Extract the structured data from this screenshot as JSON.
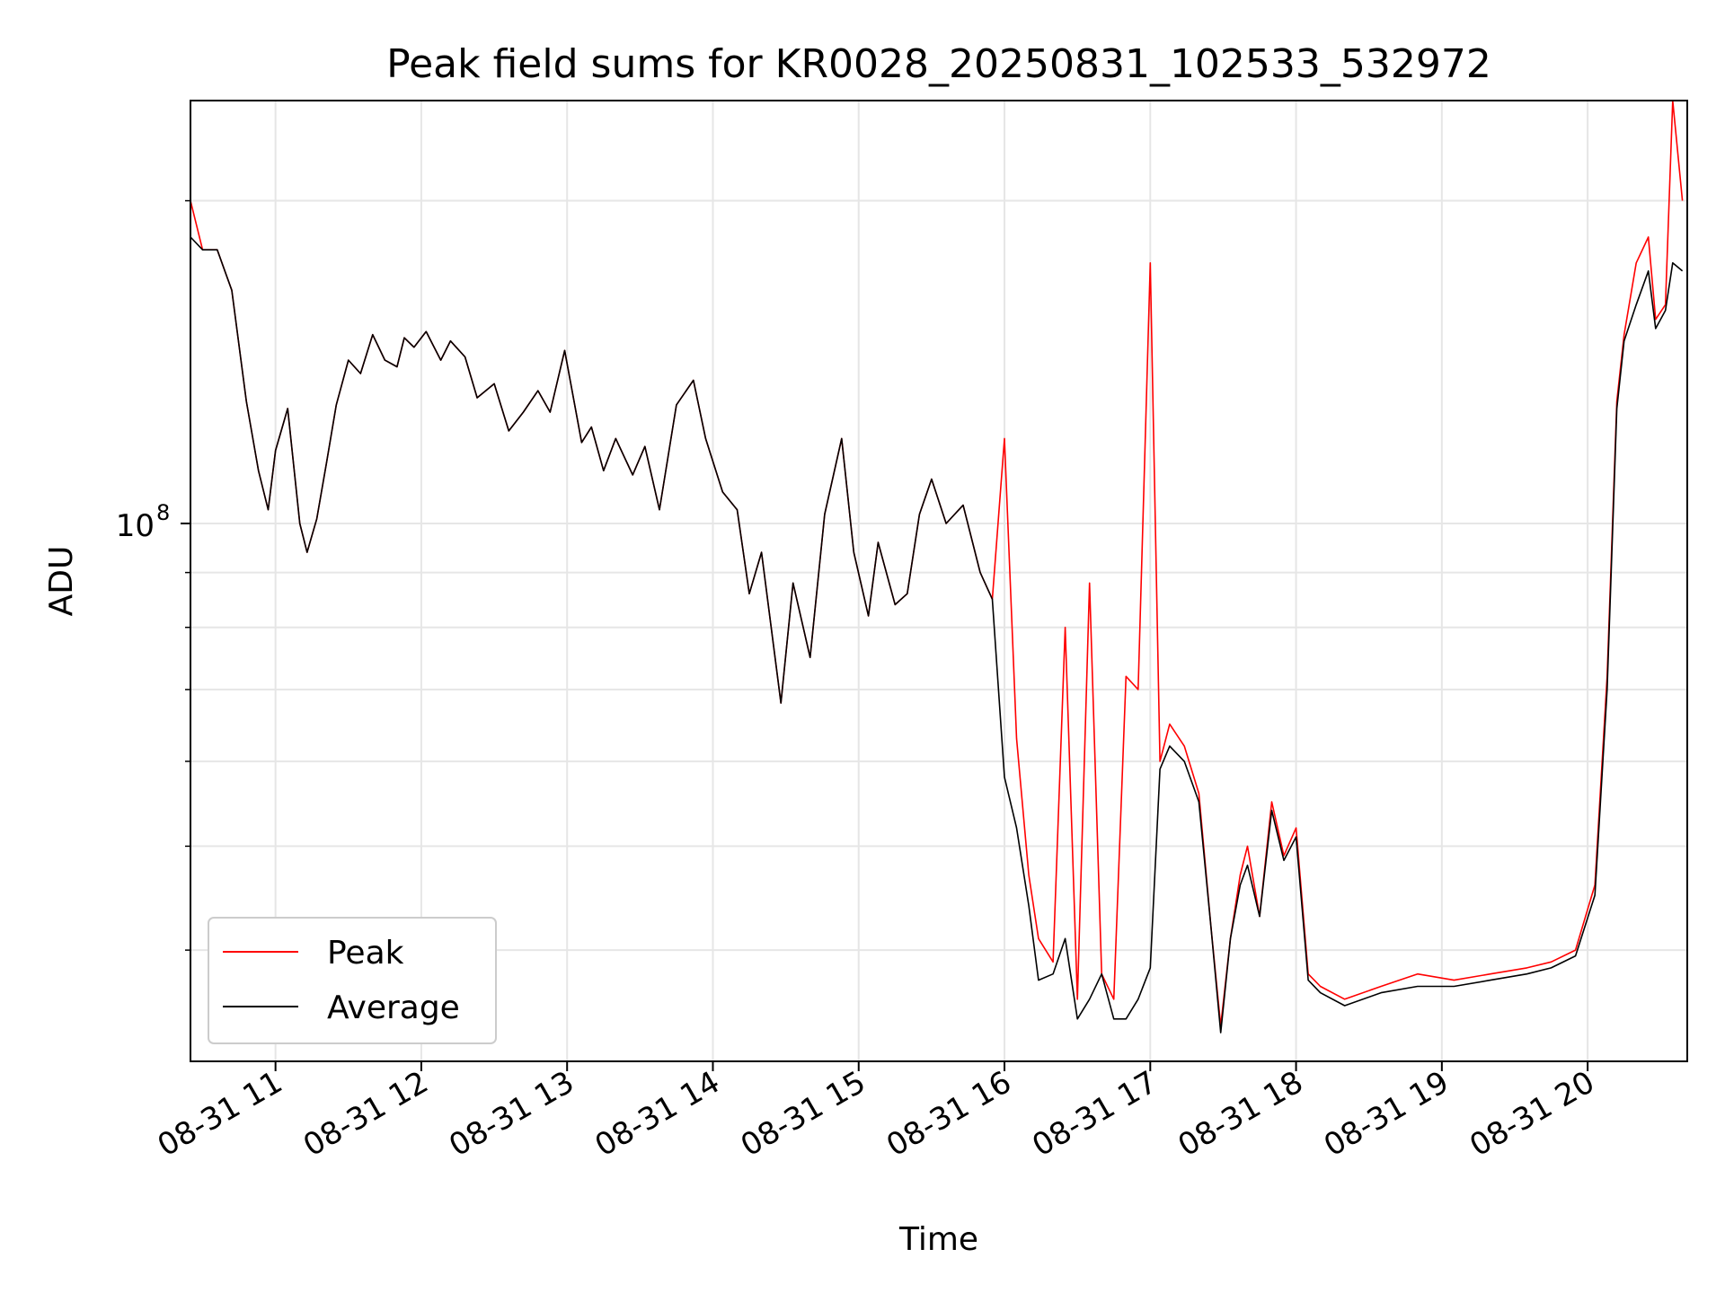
{
  "chart_data": {
    "type": "line",
    "title": "Peak field sums for KR0028_20250831_102533_532972",
    "xlabel": "Time",
    "ylabel": "ADU",
    "x_scale": "time",
    "y_scale": "log",
    "xlim": [
      "2025-08-31T10:25",
      "2025-08-31T20:41"
    ],
    "ylim": [
      31500000,
      248000000
    ],
    "xticks": [
      "08-31 11",
      "08-31 12",
      "08-31 13",
      "08-31 14",
      "08-31 15",
      "08-31 16",
      "08-31 17",
      "08-31 18",
      "08-31 19",
      "08-31 20"
    ],
    "yticks": [
      {
        "label": "10",
        "exp": "8",
        "value": 100000000
      }
    ],
    "grid": true,
    "legend_position": "lower-left",
    "colors": {
      "peak": "#ff0000",
      "average": "#000000",
      "grid": "#e6e6e6"
    },
    "x": [
      "10:25",
      "10:30",
      "10:36",
      "10:42",
      "10:48",
      "10:53",
      "10:57",
      "11:00",
      "11:05",
      "11:10",
      "11:13",
      "11:17",
      "11:21",
      "11:25",
      "11:30",
      "11:35",
      "11:40",
      "11:45",
      "11:50",
      "11:53",
      "11:57",
      "12:02",
      "12:08",
      "12:12",
      "12:18",
      "12:23",
      "12:30",
      "12:36",
      "12:42",
      "12:48",
      "12:53",
      "12:59",
      "13:06",
      "13:10",
      "13:15",
      "13:20",
      "13:27",
      "13:32",
      "13:38",
      "13:45",
      "13:52",
      "13:57",
      "14:04",
      "14:10",
      "14:15",
      "14:20",
      "14:28",
      "14:33",
      "14:40",
      "14:46",
      "14:53",
      "14:58",
      "15:04",
      "15:08",
      "15:15",
      "15:20",
      "15:25",
      "15:30",
      "15:36",
      "15:43",
      "15:50",
      "15:55",
      "16:00",
      "16:05",
      "16:10",
      "16:14",
      "16:20",
      "16:25",
      "16:30",
      "16:35",
      "16:40",
      "16:45",
      "16:50",
      "16:55",
      "17:00",
      "17:04",
      "17:08",
      "17:14",
      "17:20",
      "17:25",
      "17:29",
      "17:33",
      "17:37",
      "17:40",
      "17:45",
      "17:50",
      "17:55",
      "18:00",
      "18:05",
      "18:10",
      "18:20",
      "18:35",
      "18:50",
      "19:05",
      "19:20",
      "19:35",
      "19:45",
      "19:55",
      "20:03",
      "20:08",
      "20:12",
      "20:15",
      "20:20",
      "20:25",
      "20:28",
      "20:32",
      "20:35",
      "20:39"
    ],
    "series": [
      {
        "name": "Peak",
        "values": [
          200000000,
          180000000,
          180000000,
          165000000,
          130000000,
          112000000,
          103000000,
          117000000,
          128000000,
          100000000,
          94000000,
          101000000,
          114000000,
          129000000,
          142000000,
          138000000,
          150000000,
          142000000,
          140000000,
          149000000,
          146000000,
          151000000,
          142000000,
          148000000,
          143000000,
          131000000,
          135000000,
          122000000,
          127000000,
          133000000,
          127000000,
          145000000,
          119000000,
          123000000,
          112000000,
          120000000,
          111000000,
          118000000,
          103000000,
          129000000,
          136000000,
          120000000,
          107000000,
          103000000,
          86000000,
          94000000,
          68000000,
          88000000,
          75000000,
          102000000,
          120000000,
          94000000,
          82000000,
          96000000,
          84000000,
          86000000,
          102000000,
          110000000,
          100000000,
          104000000,
          90000000,
          85000000,
          120000000,
          63000000,
          47000000,
          41000000,
          39000000,
          80000000,
          36000000,
          88000000,
          38000000,
          36000000,
          72000000,
          70000000,
          175000000,
          60000000,
          65000000,
          62000000,
          56000000,
          42000000,
          34000000,
          41000000,
          47000000,
          50000000,
          43000000,
          55000000,
          49000000,
          52000000,
          38000000,
          37000000,
          36000000,
          37000000,
          38000000,
          37500000,
          38000000,
          38500000,
          39000000,
          40000000,
          46000000,
          72000000,
          130000000,
          150000000,
          175000000,
          185000000,
          155000000,
          160000000,
          248000000,
          200000000
        ]
      },
      {
        "name": "Average",
        "values": [
          185000000,
          180000000,
          180000000,
          165000000,
          130000000,
          112000000,
          103000000,
          117000000,
          128000000,
          100000000,
          94000000,
          101000000,
          114000000,
          129000000,
          142000000,
          138000000,
          150000000,
          142000000,
          140000000,
          149000000,
          146000000,
          151000000,
          142000000,
          148000000,
          143000000,
          131000000,
          135000000,
          122000000,
          127000000,
          133000000,
          127000000,
          145000000,
          119000000,
          123000000,
          112000000,
          120000000,
          111000000,
          118000000,
          103000000,
          129000000,
          136000000,
          120000000,
          107000000,
          103000000,
          86000000,
          94000000,
          68000000,
          88000000,
          75000000,
          102000000,
          120000000,
          94000000,
          82000000,
          96000000,
          84000000,
          86000000,
          102000000,
          110000000,
          100000000,
          104000000,
          90000000,
          85000000,
          58000000,
          52000000,
          44000000,
          37500000,
          38000000,
          41000000,
          34500000,
          36000000,
          38000000,
          34500000,
          34500000,
          36000000,
          38500000,
          59000000,
          62000000,
          60000000,
          55000000,
          42000000,
          33500000,
          41000000,
          46000000,
          48000000,
          43000000,
          54000000,
          48500000,
          51000000,
          37500000,
          36500000,
          35500000,
          36500000,
          37000000,
          37000000,
          37500000,
          38000000,
          38500000,
          39500000,
          45000000,
          70000000,
          128000000,
          148000000,
          160000000,
          172000000,
          152000000,
          158000000,
          175000000,
          172000000
        ]
      }
    ]
  }
}
